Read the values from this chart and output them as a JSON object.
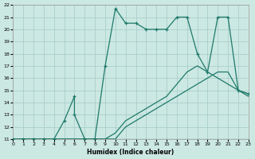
{
  "xlabel": "Humidex (Indice chaleur)",
  "bg_color": "#cce8e3",
  "grid_color": "#aaceca",
  "line_color": "#1e7a6a",
  "xlim": [
    0,
    23
  ],
  "ylim": [
    11,
    22
  ],
  "xtick_vals": [
    0,
    1,
    2,
    3,
    4,
    5,
    6,
    7,
    8,
    9,
    10,
    11,
    12,
    13,
    14,
    15,
    16,
    17,
    18,
    19,
    20,
    21,
    22,
    23
  ],
  "ytick_vals": [
    11,
    12,
    13,
    14,
    15,
    16,
    17,
    18,
    19,
    20,
    21,
    22
  ],
  "curve_main": {
    "x": [
      0,
      1,
      2,
      3,
      4,
      5,
      6,
      6,
      7,
      8,
      9,
      10,
      11,
      12,
      13,
      14,
      15,
      16,
      17,
      18,
      19,
      20,
      21,
      22,
      23
    ],
    "y": [
      11,
      11,
      11,
      11,
      11,
      12.5,
      14.5,
      13,
      11,
      11,
      17,
      21.7,
      20.5,
      20.5,
      20,
      20,
      20,
      21,
      21,
      18,
      16.5,
      21,
      21,
      15,
      14.7
    ],
    "marker": true
  },
  "curve_high": {
    "x": [
      0,
      5,
      6,
      7,
      8,
      9,
      10,
      11,
      12,
      13,
      14,
      15,
      16,
      17,
      18,
      19,
      20,
      21,
      22,
      23
    ],
    "y": [
      11,
      11,
      11,
      11,
      11,
      11,
      11.5,
      12.5,
      13,
      13.5,
      14,
      14.5,
      15.5,
      16.5,
      17,
      16.5,
      16,
      15.5,
      15,
      14.7
    ],
    "marker": false
  },
  "curve_mid": {
    "x": [
      0,
      5,
      10,
      11,
      12,
      13,
      14,
      15,
      16,
      17,
      18,
      19,
      20,
      21,
      22,
      23
    ],
    "y": [
      11,
      11,
      11,
      12,
      12.5,
      13,
      13.5,
      14,
      14.5,
      15,
      15.5,
      16,
      16.5,
      16.5,
      15,
      14.5
    ],
    "marker": false
  },
  "curve_base": {
    "x": [
      0,
      23
    ],
    "y": [
      11,
      11
    ],
    "marker": false
  }
}
